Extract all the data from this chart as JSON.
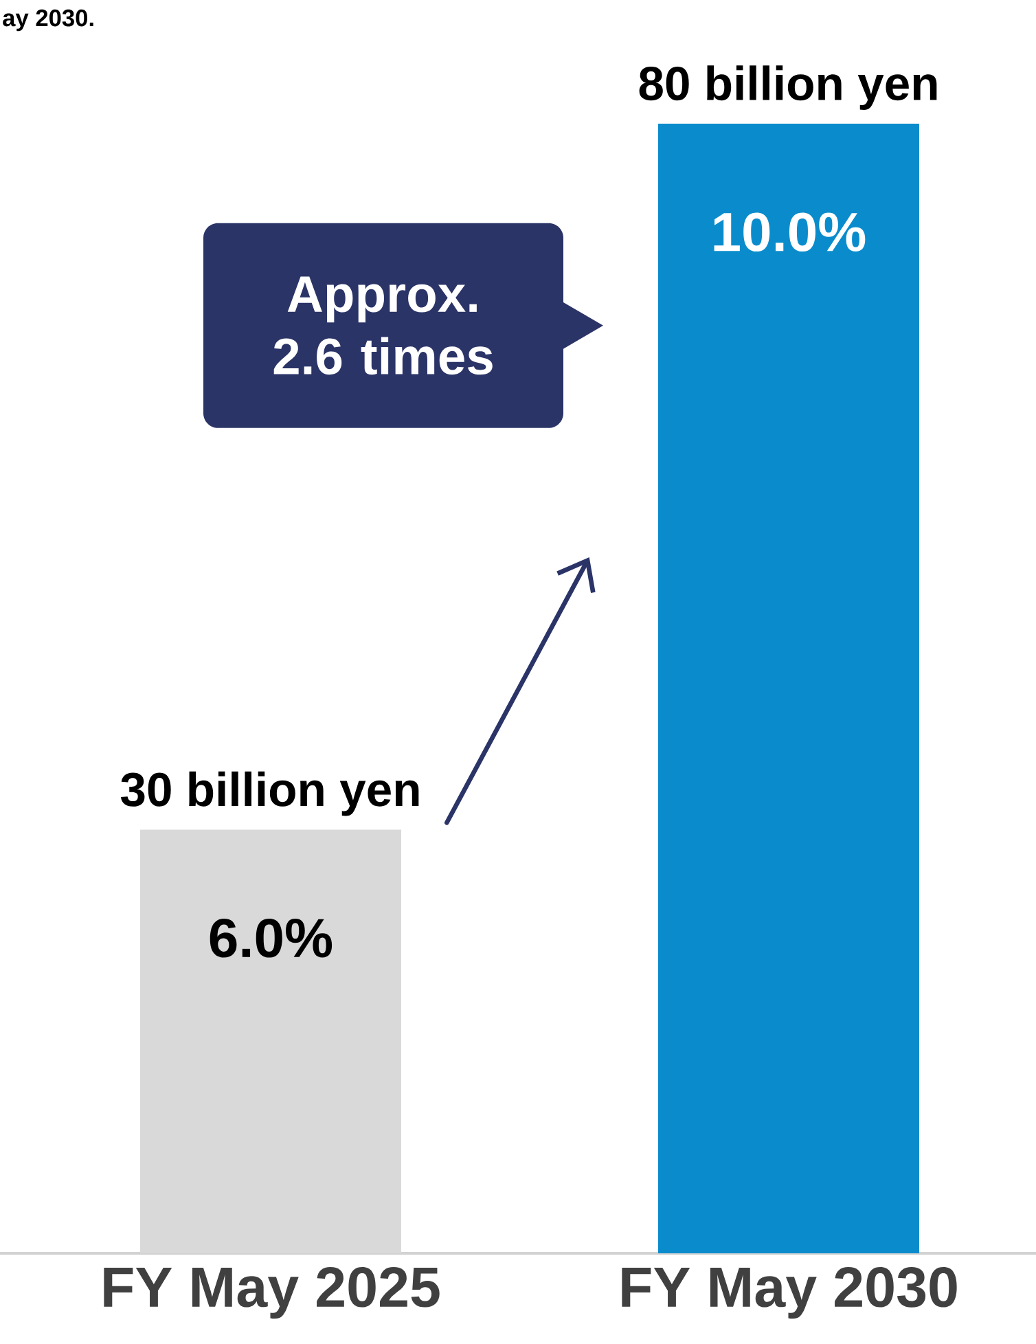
{
  "chart_data": {
    "type": "bar",
    "categories": [
      "FY May 2025",
      "FY May 2030"
    ],
    "values": [
      30,
      80
    ],
    "colors": [
      "#d9d9d9",
      "#0a8ccc"
    ],
    "value_labels": [
      "30 billion yen",
      "80 billion yen"
    ],
    "ylim": [
      0,
      80
    ],
    "annotations": [
      "6.0%",
      "10.0%",
      "Approx. 2.6 times",
      "ay 2030."
    ]
  }
}
